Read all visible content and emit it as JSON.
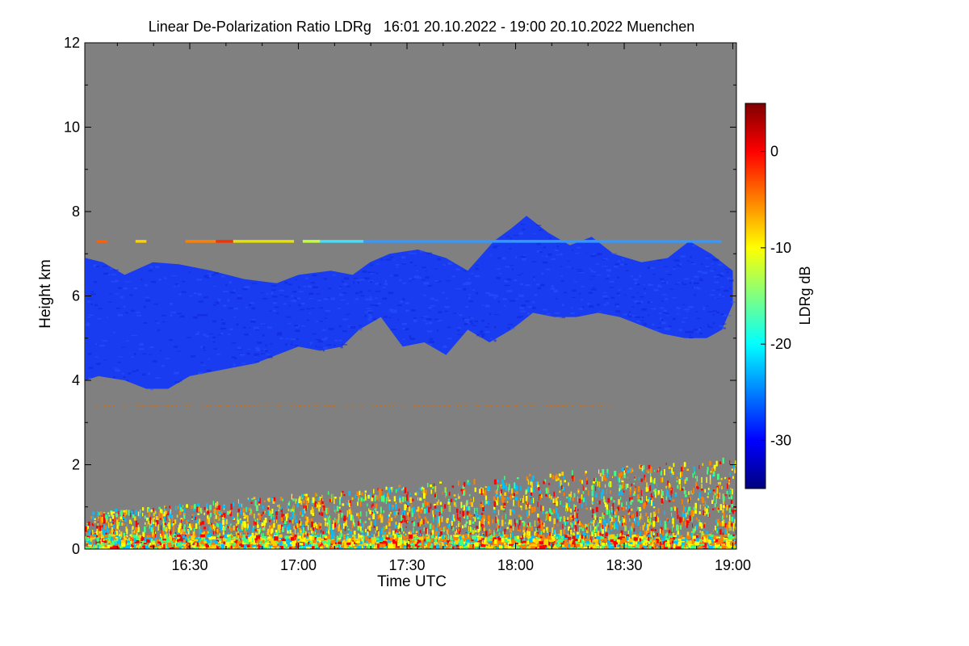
{
  "chart_data": {
    "type": "heatmap",
    "title": "Linear De-Polarization Ratio LDRg   16:01 20.10.2022 - 19:00 20.10.2022 Muenchen",
    "xlabel": "Time UTC",
    "ylabel": "Height km",
    "xlim": [
      "16:01",
      "19:01"
    ],
    "x_ticks": [
      "16:30",
      "17:00",
      "17:30",
      "18:00",
      "18:30",
      "19:00"
    ],
    "ylim": [
      0,
      12
    ],
    "y_ticks": [
      0,
      2,
      4,
      6,
      8,
      10,
      12
    ],
    "background_color": "#808080",
    "colorbar": {
      "label": "LDRg dB",
      "range": [
        -35,
        5
      ],
      "ticks": [
        0,
        -10,
        -20,
        -30
      ],
      "colors": [
        "#00007f",
        "#0000ff",
        "#0080ff",
        "#00ffff",
        "#80ff80",
        "#ffff00",
        "#ff8000",
        "#ff0000",
        "#7f0000"
      ]
    },
    "features": [
      {
        "name": "cirrus cloud layer",
        "value_db": -30,
        "color": "#1a3cf0",
        "top_km": [
          [
            16.02,
            6.9
          ],
          [
            16.1,
            6.8
          ],
          [
            16.2,
            6.5
          ],
          [
            16.33,
            6.8
          ],
          [
            16.45,
            6.75
          ],
          [
            16.6,
            6.6
          ],
          [
            16.75,
            6.4
          ],
          [
            16.9,
            6.3
          ],
          [
            17.0,
            6.5
          ],
          [
            17.15,
            6.6
          ],
          [
            17.25,
            6.5
          ],
          [
            17.33,
            6.8
          ],
          [
            17.42,
            7.0
          ],
          [
            17.55,
            7.1
          ],
          [
            17.68,
            6.9
          ],
          [
            17.78,
            6.6
          ],
          [
            17.9,
            7.3
          ],
          [
            17.98,
            7.6
          ],
          [
            18.05,
            7.9
          ],
          [
            18.15,
            7.5
          ],
          [
            18.25,
            7.2
          ],
          [
            18.35,
            7.4
          ],
          [
            18.45,
            7.0
          ],
          [
            18.58,
            6.8
          ],
          [
            18.7,
            6.9
          ],
          [
            18.8,
            7.3
          ],
          [
            18.9,
            7.0
          ],
          [
            19.0,
            6.6
          ]
        ],
        "base_km": [
          [
            16.02,
            4.0
          ],
          [
            16.08,
            4.1
          ],
          [
            16.2,
            4.0
          ],
          [
            16.3,
            3.8
          ],
          [
            16.4,
            3.8
          ],
          [
            16.5,
            4.1
          ],
          [
            16.6,
            4.2
          ],
          [
            16.7,
            4.3
          ],
          [
            16.8,
            4.4
          ],
          [
            16.9,
            4.6
          ],
          [
            17.0,
            4.8
          ],
          [
            17.1,
            4.7
          ],
          [
            17.2,
            4.8
          ],
          [
            17.28,
            5.2
          ],
          [
            17.38,
            5.5
          ],
          [
            17.48,
            4.8
          ],
          [
            17.58,
            4.9
          ],
          [
            17.68,
            4.6
          ],
          [
            17.78,
            5.2
          ],
          [
            17.88,
            4.9
          ],
          [
            17.98,
            5.2
          ],
          [
            18.08,
            5.6
          ],
          [
            18.18,
            5.5
          ],
          [
            18.28,
            5.5
          ],
          [
            18.38,
            5.6
          ],
          [
            18.48,
            5.5
          ],
          [
            18.58,
            5.3
          ],
          [
            18.68,
            5.1
          ],
          [
            18.78,
            5.0
          ],
          [
            18.88,
            5.0
          ],
          [
            18.95,
            5.2
          ],
          [
            19.0,
            5.8
          ]
        ]
      },
      {
        "name": "thin layer near 7.3 km",
        "height_km": 7.3,
        "x_range": [
          16.07,
          18.95
        ],
        "segments": [
          [
            16.07,
            16.12,
            "#ff6000"
          ],
          [
            16.25,
            16.3,
            "#ffd000"
          ],
          [
            16.48,
            16.62,
            "#ff8000"
          ],
          [
            16.62,
            16.7,
            "#ff3000"
          ],
          [
            16.7,
            16.98,
            "#e8e000"
          ],
          [
            17.02,
            17.1,
            "#c0ff40"
          ],
          [
            17.1,
            17.3,
            "#40e0ff"
          ],
          [
            17.3,
            18.95,
            "#3399ff"
          ]
        ]
      },
      {
        "name": "faint layer near 3.4 km",
        "height_km": 3.4,
        "x_range": [
          16.05,
          18.45
        ],
        "color": "#c07020"
      },
      {
        "name": "boundary layer noise",
        "height_km": [
          0,
          2.3
        ],
        "colors": [
          "#ffff00",
          "#ff8000",
          "#40ff80",
          "#ff0000",
          "#00c0ff",
          "#ffd000"
        ]
      }
    ]
  }
}
